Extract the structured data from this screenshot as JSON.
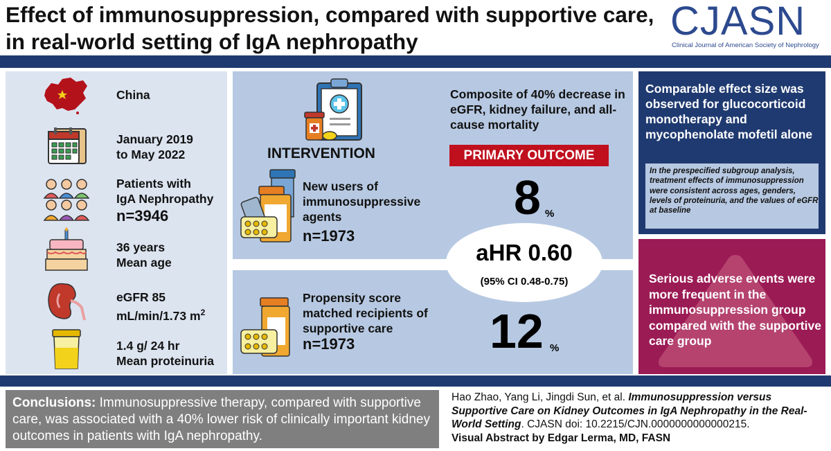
{
  "header": {
    "title": "Effect of immunosuppression, compared with supportive care, in real-world setting of IgA nephropathy",
    "logo": "CJASN",
    "logo_subtitle": "Clinical Journal of American Society of Nephrology"
  },
  "left": {
    "country": "China",
    "period_line1": "January 2019",
    "period_line2": "to May 2022",
    "patients_line1": "Patients with",
    "patients_line2": "IgA Nephropathy",
    "patients_n": "n=3946",
    "age_line1": "36 years",
    "age_line2": "Mean age",
    "egfr_line1": "eGFR 85",
    "egfr_line2": "mL/min/1.73 m",
    "egfr_sup": "2",
    "prot_line1": "1.4 g/ 24 hr",
    "prot_line2": "Mean proteinuria"
  },
  "middle": {
    "intervention_label": "INTERVENTION",
    "new_users_text": "New users of immunosuppressive agents",
    "new_users_n": "n=1973",
    "propensity_text": "Propensity score matched recipients of supportive care",
    "propensity_n": "n=1973",
    "composite_text": "Composite of 40% decrease in eGFR, kidney failure, and all-cause mortality",
    "primary_outcome_label": "PRIMARY OUTCOME",
    "intervention_pct": "8",
    "control_pct": "12",
    "pct_sign": "%",
    "ahr": "aHR 0.60",
    "ci": "(95% CI 0.48-0.75)"
  },
  "right": {
    "effect_text": "Comparable effect size was observed for glucocorticoid monotherapy and mycophenolate mofetil alone",
    "subgroup_text": "In the prespecified subgroup analysis, treatment effects of immunosuppression were consistent across ages, genders, levels of proteinuria, and the values of eGFR at baseline",
    "adverse_text": "Serious adverse events were more frequent in the immunosuppression group compared with the supportive care group"
  },
  "footer": {
    "conclusions_label": "Conclusions:",
    "conclusions_text": " Immunosuppressive therapy, compared with supportive care, was associated with a 40% lower risk of clinically important kidney outcomes in patients with IgA nephropathy.",
    "cite_authors": "Hao Zhao, Yang Li, Jingdi Sun, et al. ",
    "cite_title": "Immunosuppression versus Supportive Care on Kidney Outcomes in IgA Nephropathy in the Real-World Setting",
    "cite_doi": ". CJASN doi: 10.2215/CJN.0000000000000215.",
    "credit": "Visual Abstract by Edgar Lerma, MD, FASN"
  },
  "colors": {
    "navy": "#1f3a70",
    "light_blue": "#dce4f0",
    "mid_blue": "#b7c9e2",
    "primary_red": "#c0101e",
    "magenta": "#9b1b55",
    "gray": "#7f7f7f",
    "logo_blue": "#2d4a8f"
  },
  "icons": [
    "china-map-icon",
    "calendar-icon",
    "people-icon",
    "cake-icon",
    "kidney-icon",
    "urine-cup-icon",
    "clipboard-medicine-icon",
    "pill-bottles-icon",
    "pill-bottle-icon",
    "warning-triangle-icon"
  ]
}
